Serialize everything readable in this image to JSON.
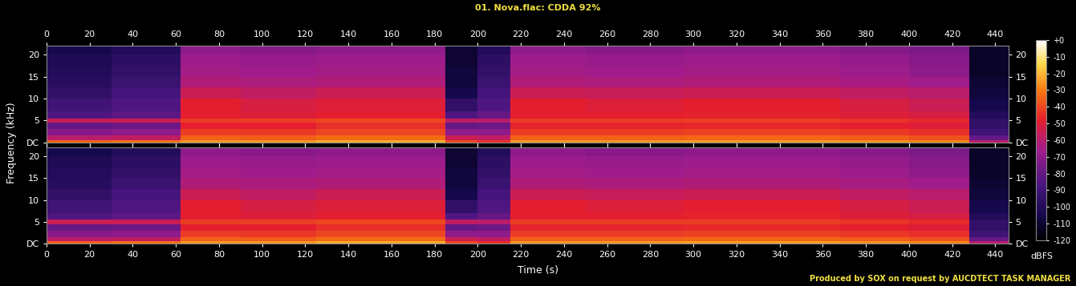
{
  "title": "01. Nova.flac: CDDA 92%",
  "xlabel": "Time (s)",
  "ylabel": "Frequency (kHz)",
  "footer": "Produced by SOX on request by AUCDTECT TASK MANAGER",
  "colorbar": {
    "label": "dBFS",
    "range": [
      -120,
      0
    ],
    "ticks": [
      {
        "value": 0,
        "label": "+0"
      },
      -10,
      -20,
      -30,
      -40,
      -50,
      -60,
      -70,
      -80,
      -90,
      -100,
      -110,
      -120
    ]
  },
  "chart_data": [
    {
      "type": "heatmap",
      "xlim": [
        0,
        446
      ],
      "xticks": [
        0,
        20,
        40,
        60,
        80,
        100,
        120,
        140,
        160,
        180,
        200,
        220,
        240,
        260,
        280,
        300,
        320,
        340,
        360,
        380,
        400,
        420,
        440
      ],
      "ylim": [
        0,
        22.05
      ],
      "yticks": [
        {
          "value": 0,
          "label": "DC"
        },
        5,
        10,
        15,
        20
      ],
      "x_edges": [
        0,
        30,
        62,
        90,
        125,
        155,
        185,
        200,
        215,
        250,
        295,
        330,
        368,
        400,
        428,
        446
      ],
      "y_edges": [
        0,
        0.5,
        1.5,
        3,
        4.5,
        5.5,
        7,
        10,
        12.5,
        15,
        17.5,
        20,
        22.05
      ],
      "cells": [
        [
          -35,
          -32,
          -25,
          -25,
          -22,
          -22,
          -40,
          -45,
          -25,
          -25,
          -24,
          -24,
          -26,
          -28,
          -60
        ],
        [
          -60,
          -58,
          -35,
          -36,
          -33,
          -33,
          -55,
          -58,
          -35,
          -35,
          -34,
          -34,
          -36,
          -38,
          -80
        ],
        [
          -72,
          -70,
          -42,
          -43,
          -40,
          -40,
          -70,
          -70,
          -42,
          -42,
          -41,
          -41,
          -43,
          -45,
          -90
        ],
        [
          -80,
          -78,
          -48,
          -48,
          -45,
          -45,
          -80,
          -78,
          -47,
          -47,
          -46,
          -46,
          -48,
          -50,
          -95
        ],
        [
          -55,
          -55,
          -42,
          -42,
          -40,
          -40,
          -58,
          -60,
          -42,
          -42,
          -42,
          -42,
          -44,
          -46,
          -95
        ],
        [
          -85,
          -82,
          -48,
          -50,
          -48,
          -48,
          -85,
          -80,
          -48,
          -48,
          -47,
          -47,
          -50,
          -52,
          -100
        ],
        [
          -90,
          -85,
          -48,
          -52,
          -50,
          -50,
          -95,
          -85,
          -48,
          -50,
          -48,
          -48,
          -52,
          -55,
          -105
        ],
        [
          -95,
          -88,
          -55,
          -58,
          -55,
          -55,
          -105,
          -88,
          -55,
          -56,
          -55,
          -55,
          -58,
          -60,
          -108
        ],
        [
          -98,
          -92,
          -62,
          -63,
          -62,
          -62,
          -108,
          -92,
          -62,
          -63,
          -62,
          -62,
          -64,
          -66,
          -110
        ],
        [
          -100,
          -95,
          -65,
          -66,
          -65,
          -65,
          -108,
          -95,
          -65,
          -66,
          -65,
          -65,
          -67,
          -70,
          -112
        ],
        [
          -102,
          -97,
          -67,
          -68,
          -67,
          -67,
          -110,
          -97,
          -67,
          -68,
          -67,
          -67,
          -69,
          -72,
          -112
        ],
        [
          -105,
          -100,
          -70,
          -72,
          -70,
          -70,
          -110,
          -100,
          -70,
          -72,
          -70,
          -70,
          -72,
          -75,
          -112
        ]
      ]
    },
    {
      "type": "heatmap",
      "xlim": [
        0,
        446
      ],
      "xticks": [
        0,
        20,
        40,
        60,
        80,
        100,
        120,
        140,
        160,
        180,
        200,
        220,
        240,
        260,
        280,
        300,
        320,
        340,
        360,
        380,
        400,
        420,
        440
      ],
      "ylim": [
        0,
        22.05
      ],
      "yticks": [
        {
          "value": 0,
          "label": "DC"
        },
        5,
        10,
        15,
        20
      ],
      "x_edges": [
        0,
        30,
        62,
        90,
        125,
        155,
        185,
        200,
        215,
        250,
        295,
        330,
        368,
        400,
        428,
        446
      ],
      "y_edges": [
        0,
        0.5,
        1.5,
        3,
        4.5,
        5.5,
        7,
        10,
        12.5,
        15,
        17.5,
        20,
        22.05
      ],
      "cells": [
        [
          -35,
          -32,
          -25,
          -25,
          -22,
          -22,
          -40,
          -45,
          -25,
          -25,
          -24,
          -24,
          -26,
          -28,
          -60
        ],
        [
          -60,
          -58,
          -35,
          -36,
          -33,
          -33,
          -55,
          -58,
          -35,
          -35,
          -34,
          -34,
          -36,
          -38,
          -80
        ],
        [
          -72,
          -70,
          -42,
          -43,
          -40,
          -40,
          -70,
          -70,
          -42,
          -42,
          -41,
          -41,
          -43,
          -45,
          -90
        ],
        [
          -80,
          -78,
          -48,
          -48,
          -45,
          -45,
          -80,
          -78,
          -47,
          -47,
          -46,
          -46,
          -48,
          -50,
          -95
        ],
        [
          -55,
          -55,
          -42,
          -42,
          -40,
          -40,
          -58,
          -60,
          -42,
          -42,
          -42,
          -42,
          -44,
          -46,
          -95
        ],
        [
          -85,
          -82,
          -48,
          -50,
          -48,
          -48,
          -85,
          -80,
          -48,
          -48,
          -47,
          -47,
          -50,
          -52,
          -100
        ],
        [
          -90,
          -85,
          -48,
          -52,
          -50,
          -50,
          -95,
          -85,
          -48,
          -50,
          -48,
          -48,
          -52,
          -55,
          -105
        ],
        [
          -95,
          -88,
          -55,
          -58,
          -55,
          -55,
          -105,
          -88,
          -55,
          -56,
          -55,
          -55,
          -58,
          -60,
          -108
        ],
        [
          -98,
          -92,
          -62,
          -63,
          -62,
          -62,
          -108,
          -92,
          -62,
          -63,
          -62,
          -62,
          -64,
          -66,
          -110
        ],
        [
          -100,
          -95,
          -65,
          -66,
          -65,
          -65,
          -108,
          -95,
          -65,
          -66,
          -65,
          -65,
          -67,
          -70,
          -112
        ],
        [
          -102,
          -97,
          -67,
          -68,
          -67,
          -67,
          -110,
          -97,
          -67,
          -68,
          -67,
          -67,
          -69,
          -72,
          -112
        ],
        [
          -105,
          -100,
          -70,
          -72,
          -70,
          -70,
          -110,
          -100,
          -70,
          -72,
          -70,
          -70,
          -72,
          -75,
          -112
        ]
      ]
    }
  ]
}
